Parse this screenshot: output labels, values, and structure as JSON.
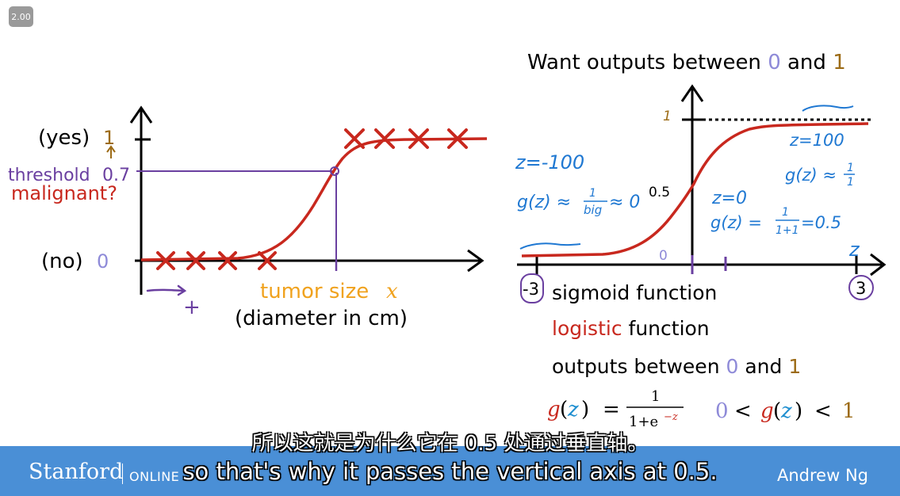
{
  "player": {
    "speed_badge": "2.00"
  },
  "left_plot": {
    "yes_label": "(yes)",
    "one_label": "1",
    "threshold_label": "threshold",
    "threshold_value": "0.7",
    "malignant_label": "malignant?",
    "no_label": "(no)",
    "zero_label": "0",
    "x_label": "tumor size",
    "x_symbol": "x",
    "x_unit": "(diameter in cm)",
    "plus_label": "+"
  },
  "right_plot": {
    "title_pre": "Want outputs between ",
    "title_zero": "0",
    "title_and": " and ",
    "title_one": "1",
    "y_one": "1",
    "y_half": "0.5",
    "x_zero": "0",
    "x_label": "z",
    "x_left": "-3",
    "x_right": "3",
    "note_z_neg": "z=-100",
    "note_g_small_pre": "g(z) ≈",
    "note_g_small_frac_num": "1",
    "note_g_small_frac_den": "big",
    "note_g_small_post": "≈ 0",
    "note_z_pos": "z=100",
    "note_g_one_pre": "g(z) ≈",
    "note_g_one_num": "1",
    "note_g_one_den": "1",
    "note_z0": "z=0",
    "note_g_half_pre": "g(z) =",
    "note_g_half_num": "1",
    "note_g_half_den": "1+1",
    "note_g_half_post": "=0.5"
  },
  "text_block": {
    "line1": "sigmoid function",
    "line2_red": "logistic",
    "line2_rest": " function",
    "line3_pre": "outputs between ",
    "line3_zero": "0",
    "line3_and": " and ",
    "line3_one": "1",
    "formula_g": "g",
    "formula_z": "z",
    "formula_eq": "=",
    "formula_num": "1",
    "formula_den_base": "1+e",
    "formula_den_exp": "−z",
    "ineq_zero": "0",
    "ineq_lt1": "<",
    "ineq_g": "g",
    "ineq_z": "z",
    "ineq_lt2": "<",
    "ineq_one": "1"
  },
  "footer": {
    "brand": "Stanford",
    "online": "ONLINE",
    "instructor": "Andrew Ng"
  },
  "subtitles": {
    "zh": "所以这就是为什么它在 0.5 处通过垂直轴。",
    "en": "so that's why it passes the vertical axis at 0.5."
  },
  "colors": {
    "red": "#c8281e",
    "purple": "#6a3fa0",
    "lavender": "#8e8ad8",
    "brown": "#9c6b16",
    "orange": "#f0a21e",
    "blue_hand": "#1f78d2",
    "bar": "#4a8fd6"
  }
}
